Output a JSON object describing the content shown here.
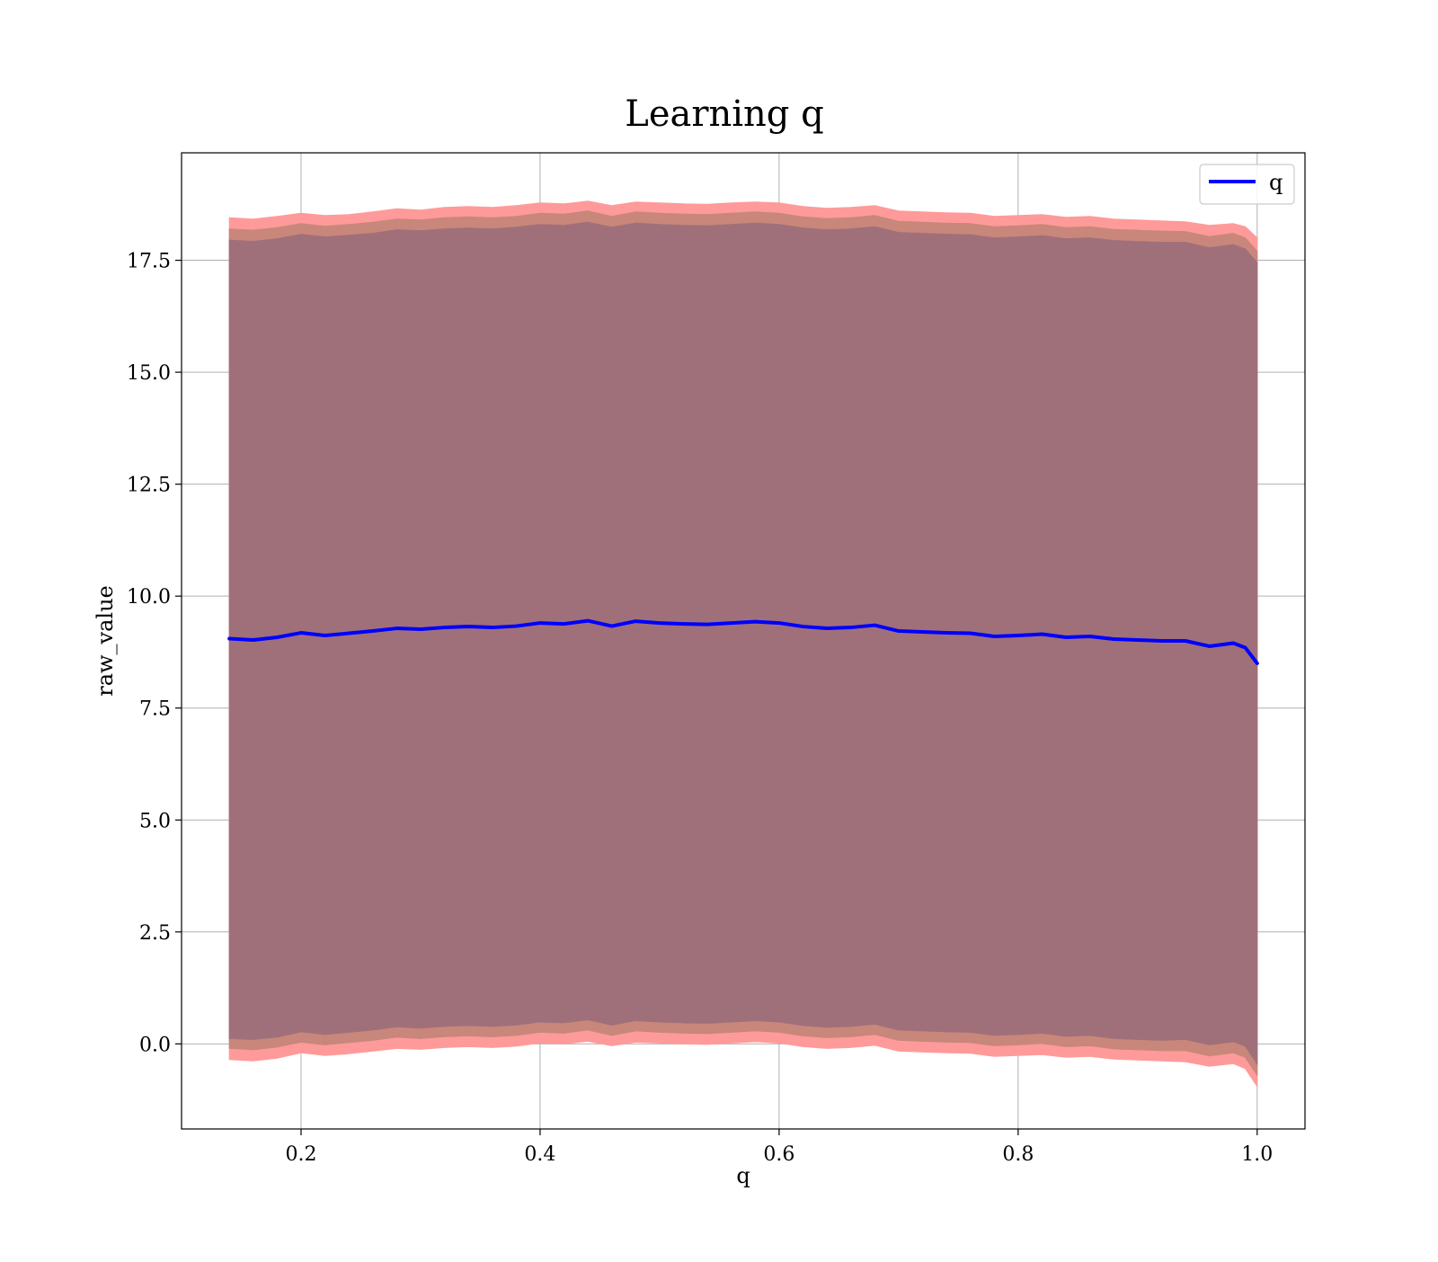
{
  "chart_data": {
    "type": "area",
    "title": "Learning q",
    "xlabel": "q",
    "ylabel": "raw_value",
    "xlim": [
      0.1,
      1.04
    ],
    "ylim": [
      -1.9,
      19.9
    ],
    "x_ticks": [
      0.2,
      0.4,
      0.6,
      0.8,
      1.0
    ],
    "x_tick_labels": [
      "0.2",
      "0.4",
      "0.6",
      "0.8",
      "1.0"
    ],
    "y_ticks": [
      0.0,
      2.5,
      5.0,
      7.5,
      10.0,
      12.5,
      15.0,
      17.5
    ],
    "y_tick_labels": [
      "0.0",
      "2.5",
      "5.0",
      "7.5",
      "10.0",
      "12.5",
      "15.0",
      "17.5"
    ],
    "grid": true,
    "legend_position": "top-right",
    "colors": {
      "line": "#0000ff",
      "outer_band": "#ff9a9a",
      "middle_band": "#c8877a",
      "inner_band": "#a0707a",
      "grid": "#b0b0b0"
    },
    "x": [
      0.14,
      0.16,
      0.18,
      0.2,
      0.22,
      0.24,
      0.26,
      0.28,
      0.3,
      0.32,
      0.34,
      0.36,
      0.38,
      0.4,
      0.42,
      0.44,
      0.46,
      0.48,
      0.5,
      0.52,
      0.54,
      0.56,
      0.58,
      0.6,
      0.62,
      0.64,
      0.66,
      0.68,
      0.7,
      0.72,
      0.74,
      0.76,
      0.78,
      0.8,
      0.82,
      0.84,
      0.86,
      0.88,
      0.9,
      0.92,
      0.94,
      0.96,
      0.98,
      0.99,
      1.0
    ],
    "series": [
      {
        "name": "q",
        "values": [
          9.05,
          9.02,
          9.08,
          9.18,
          9.12,
          9.17,
          9.22,
          9.28,
          9.26,
          9.3,
          9.32,
          9.3,
          9.33,
          9.4,
          9.38,
          9.45,
          9.33,
          9.44,
          9.4,
          9.38,
          9.37,
          9.4,
          9.43,
          9.4,
          9.32,
          9.28,
          9.3,
          9.35,
          9.22,
          9.2,
          9.18,
          9.17,
          9.1,
          9.12,
          9.15,
          9.08,
          9.1,
          9.04,
          9.02,
          9.0,
          9.0,
          8.88,
          8.95,
          8.85,
          8.5
        ]
      }
    ],
    "bands": [
      {
        "upper": [
          18.45,
          18.42,
          18.48,
          18.55,
          18.5,
          18.52,
          18.58,
          18.65,
          18.62,
          18.68,
          18.7,
          18.68,
          18.72,
          18.78,
          18.76,
          18.82,
          18.72,
          18.8,
          18.78,
          18.76,
          18.75,
          18.78,
          18.8,
          18.78,
          18.7,
          18.66,
          18.68,
          18.72,
          18.6,
          18.58,
          18.56,
          18.55,
          18.48,
          18.5,
          18.52,
          18.46,
          18.48,
          18.42,
          18.4,
          18.38,
          18.36,
          18.28,
          18.32,
          18.25,
          18.0
        ],
        "lower": [
          -0.35,
          -0.38,
          -0.32,
          -0.2,
          -0.26,
          -0.22,
          -0.16,
          -0.1,
          -0.12,
          -0.08,
          -0.06,
          -0.08,
          -0.05,
          0.02,
          0.0,
          0.06,
          -0.04,
          0.04,
          0.02,
          0.0,
          -0.01,
          0.02,
          0.05,
          0.02,
          -0.06,
          -0.1,
          -0.08,
          -0.03,
          -0.16,
          -0.18,
          -0.2,
          -0.21,
          -0.28,
          -0.26,
          -0.24,
          -0.3,
          -0.28,
          -0.34,
          -0.36,
          -0.38,
          -0.4,
          -0.5,
          -0.44,
          -0.55,
          -0.95
        ]
      },
      {
        "upper": [
          18.2,
          18.17,
          18.23,
          18.32,
          18.26,
          18.3,
          18.35,
          18.42,
          18.4,
          18.45,
          18.47,
          18.45,
          18.48,
          18.55,
          18.53,
          18.6,
          18.48,
          18.58,
          18.55,
          18.53,
          18.52,
          18.55,
          18.58,
          18.55,
          18.47,
          18.43,
          18.45,
          18.5,
          18.37,
          18.35,
          18.33,
          18.32,
          18.25,
          18.27,
          18.3,
          18.23,
          18.25,
          18.19,
          18.17,
          18.15,
          18.14,
          18.03,
          18.1,
          18.0,
          17.7
        ],
        "lower": [
          -0.1,
          -0.13,
          -0.07,
          0.04,
          -0.02,
          0.03,
          0.08,
          0.15,
          0.12,
          0.16,
          0.18,
          0.16,
          0.19,
          0.26,
          0.24,
          0.31,
          0.19,
          0.29,
          0.26,
          0.24,
          0.23,
          0.26,
          0.29,
          0.26,
          0.18,
          0.14,
          0.16,
          0.21,
          0.08,
          0.06,
          0.04,
          0.03,
          -0.04,
          -0.02,
          0.01,
          -0.06,
          -0.04,
          -0.11,
          -0.13,
          -0.15,
          -0.15,
          -0.27,
          -0.2,
          -0.3,
          -0.7
        ]
      },
      {
        "upper": [
          17.95,
          17.92,
          17.98,
          18.08,
          18.02,
          18.06,
          18.1,
          18.18,
          18.16,
          18.2,
          18.22,
          18.2,
          18.24,
          18.3,
          18.28,
          18.35,
          18.24,
          18.33,
          18.3,
          18.28,
          18.27,
          18.3,
          18.33,
          18.3,
          18.22,
          18.18,
          18.2,
          18.25,
          18.12,
          18.1,
          18.08,
          18.07,
          18.0,
          18.02,
          18.05,
          17.98,
          18.0,
          17.94,
          17.92,
          17.9,
          17.9,
          17.78,
          17.85,
          17.75,
          17.45
        ],
        "lower": [
          0.12,
          0.1,
          0.15,
          0.27,
          0.21,
          0.26,
          0.31,
          0.38,
          0.35,
          0.39,
          0.41,
          0.39,
          0.42,
          0.49,
          0.47,
          0.54,
          0.42,
          0.52,
          0.49,
          0.47,
          0.46,
          0.49,
          0.52,
          0.49,
          0.41,
          0.37,
          0.39,
          0.44,
          0.31,
          0.29,
          0.27,
          0.26,
          0.19,
          0.21,
          0.24,
          0.17,
          0.19,
          0.12,
          0.1,
          0.08,
          0.1,
          -0.02,
          0.05,
          -0.05,
          -0.45
        ]
      }
    ]
  }
}
